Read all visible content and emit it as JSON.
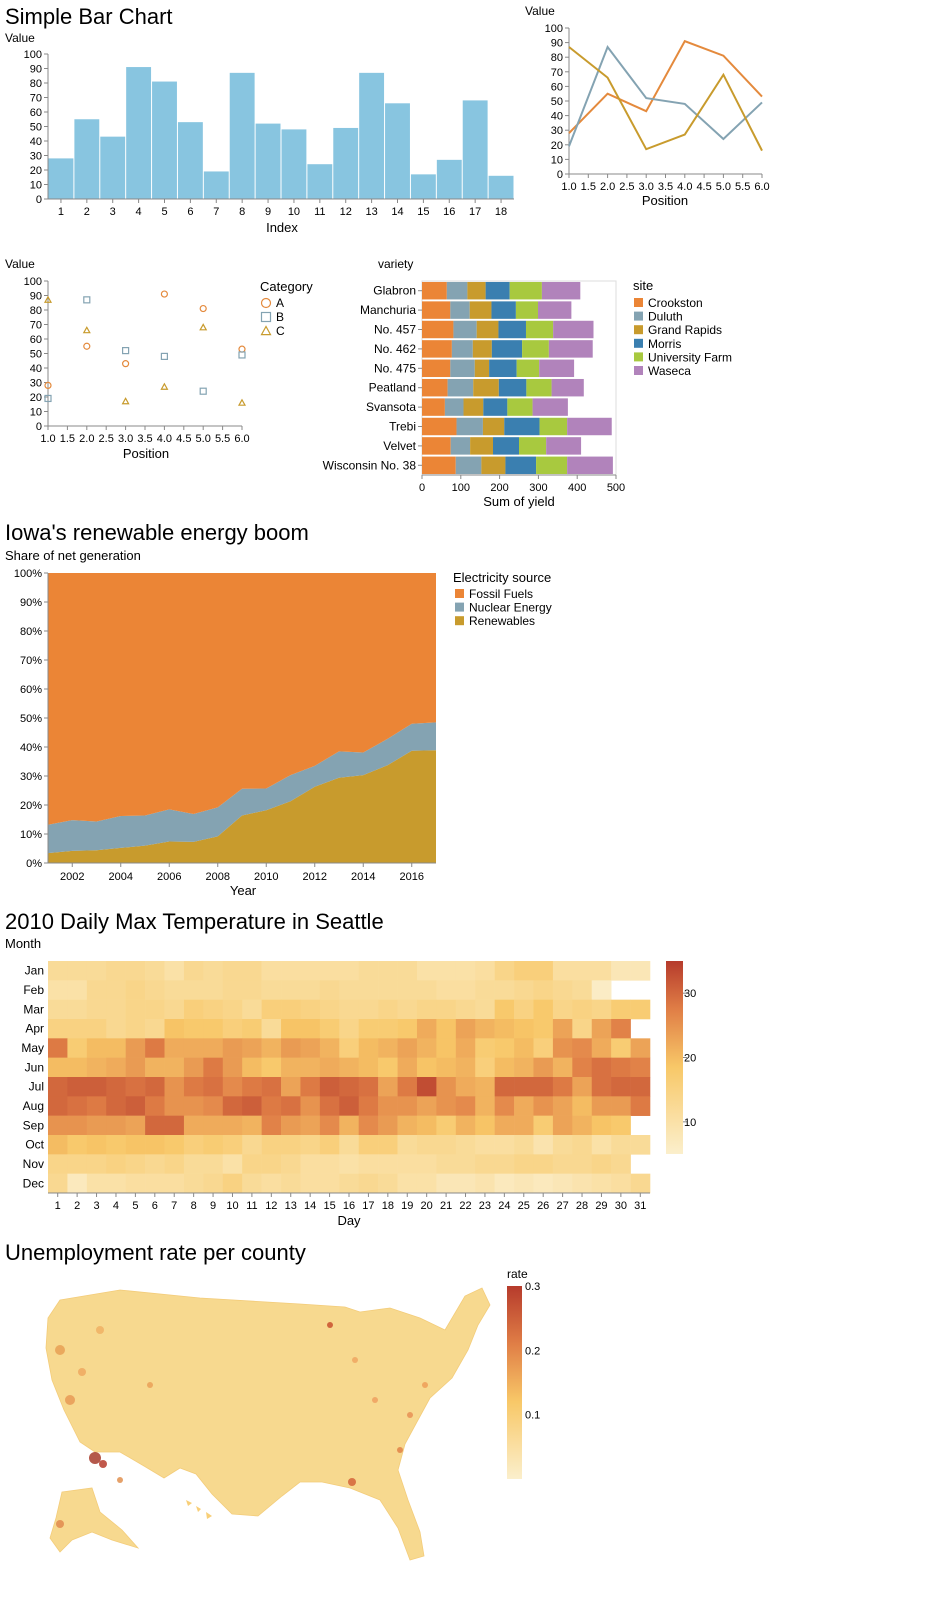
{
  "colors": {
    "bar": "#88c5e0",
    "tableau": [
      "#eb8536",
      "#84a3b2",
      "#c89b2d",
      "#3a7fb0",
      "#a8c93f",
      "#b183bb"
    ],
    "heat_low": "#fbefcc",
    "heat_mid": "#f8c868",
    "heat_high": "#b63b2c",
    "axis": "#888888"
  },
  "chart_data": [
    {
      "type": "bar",
      "title": "Simple Bar Chart",
      "ylabel": "Value",
      "xlabel": "Index",
      "categories": [
        "1",
        "2",
        "3",
        "4",
        "5",
        "6",
        "7",
        "8",
        "9",
        "10",
        "11",
        "12",
        "13",
        "14",
        "15",
        "16",
        "17",
        "18"
      ],
      "values": [
        28,
        55,
        43,
        91,
        81,
        53,
        19,
        87,
        52,
        48,
        24,
        49,
        87,
        66,
        17,
        27,
        68,
        16
      ],
      "ylim": [
        0,
        100
      ],
      "yticks": [
        "0",
        "10",
        "20",
        "30",
        "40",
        "50",
        "60",
        "70",
        "80",
        "90",
        "100"
      ]
    },
    {
      "type": "line",
      "title": "",
      "ylabel": "Value",
      "xlabel": "Position",
      "xlim": [
        1,
        6
      ],
      "ylim": [
        0,
        100
      ],
      "xticks": [
        "1.0",
        "1.5",
        "2.0",
        "2.5",
        "3.0",
        "3.5",
        "4.0",
        "4.5",
        "5.0",
        "5.5",
        "6.0"
      ],
      "yticks": [
        "0",
        "10",
        "20",
        "30",
        "40",
        "50",
        "60",
        "70",
        "80",
        "90",
        "100"
      ],
      "x": [
        1,
        2,
        3,
        4,
        5,
        6
      ],
      "series": [
        {
          "values": [
            28,
            55,
            43,
            91,
            81,
            53
          ],
          "color": "#e48a3d"
        },
        {
          "values": [
            19,
            87,
            52,
            48,
            24,
            49
          ],
          "color": "#84a3b2"
        },
        {
          "values": [
            87,
            66,
            17,
            27,
            68,
            16
          ],
          "color": "#c89b2d"
        }
      ]
    },
    {
      "type": "scatter",
      "title": "",
      "ylabel": "Value",
      "xlabel": "Position",
      "xlim": [
        1,
        6
      ],
      "ylim": [
        0,
        100
      ],
      "xticks": [
        "1.0",
        "1.5",
        "2.0",
        "2.5",
        "3.0",
        "3.5",
        "4.0",
        "4.5",
        "5.0",
        "5.5",
        "6.0"
      ],
      "yticks": [
        "0",
        "10",
        "20",
        "30",
        "40",
        "50",
        "60",
        "70",
        "80",
        "90",
        "100"
      ],
      "legend_title": "Category",
      "legend_position": "right",
      "x": [
        1,
        2,
        3,
        4,
        5,
        6
      ],
      "series": [
        {
          "name": "A",
          "shape": "circle",
          "color": "#e48a3d",
          "values": [
            28,
            55,
            43,
            91,
            81,
            53
          ]
        },
        {
          "name": "B",
          "shape": "square",
          "color": "#84a3b2",
          "values": [
            19,
            87,
            52,
            48,
            24,
            49
          ]
        },
        {
          "name": "C",
          "shape": "triangle",
          "color": "#c89b2d",
          "values": [
            87,
            66,
            17,
            27,
            68,
            16
          ]
        }
      ]
    },
    {
      "type": "bar",
      "orientation": "horizontal-stacked",
      "title": "",
      "ylabel": "variety",
      "xlabel": "Sum of yield",
      "xlim": [
        0,
        500
      ],
      "xticks": [
        "0",
        "100",
        "200",
        "300",
        "400",
        "500"
      ],
      "legend_title": "site",
      "legend_position": "right",
      "categories": [
        "Glabron",
        "Manchuria",
        "No. 457",
        "No. 462",
        "No. 475",
        "Peatland",
        "Svansota",
        "Trebi",
        "Velvet",
        "Wisconsin No. 38"
      ],
      "series": [
        {
          "name": "Crookston",
          "values": [
            64,
            73,
            81,
            77,
            73,
            66,
            59,
            89,
            74,
            87
          ]
        },
        {
          "name": "Duluth",
          "values": [
            53,
            50,
            60,
            54,
            63,
            66,
            48,
            68,
            50,
            66
          ]
        },
        {
          "name": "Grand Rapids",
          "values": [
            47,
            56,
            56,
            49,
            37,
            66,
            51,
            55,
            59,
            62
          ]
        },
        {
          "name": "Morris",
          "values": [
            62,
            63,
            71,
            78,
            71,
            71,
            62,
            91,
            67,
            79
          ]
        },
        {
          "name": "University Farm",
          "values": [
            83,
            57,
            70,
            69,
            58,
            65,
            65,
            71,
            70,
            80
          ]
        },
        {
          "name": "Waseca",
          "values": [
            99,
            86,
            104,
            113,
            90,
            83,
            91,
            115,
            90,
            118
          ]
        }
      ]
    },
    {
      "type": "area",
      "title": "Iowa's renewable energy boom",
      "ylabel": "Share of net generation",
      "xlabel": "Year",
      "xlim": [
        2001,
        2017
      ],
      "ylim": [
        0,
        100
      ],
      "xticks": [
        "2002",
        "2004",
        "2006",
        "2008",
        "2010",
        "2012",
        "2014",
        "2016"
      ],
      "yticks": [
        "0%",
        "10%",
        "20%",
        "30%",
        "40%",
        "50%",
        "60%",
        "70%",
        "80%",
        "90%",
        "100%"
      ],
      "legend_title": "Electricity source",
      "legend_position": "right",
      "x": [
        2001,
        2002,
        2003,
        2004,
        2005,
        2006,
        2007,
        2008,
        2009,
        2010,
        2011,
        2012,
        2013,
        2014,
        2015,
        2016,
        2017
      ],
      "series": [
        {
          "name": "Fossil Fuels",
          "values": [
            86.8,
            85.2,
            85.7,
            83.8,
            83.6,
            81.5,
            83.1,
            80.8,
            74.4,
            74.3,
            69.7,
            66.5,
            61.5,
            61.9,
            57.2,
            52.0,
            51.5
          ]
        },
        {
          "name": "Nuclear Energy",
          "values": [
            9.8,
            10.6,
            9.9,
            11.0,
            10.4,
            11.1,
            9.6,
            10.0,
            9.2,
            7.5,
            9.0,
            7.2,
            9.1,
            7.8,
            9.1,
            9.3,
            9.6
          ]
        },
        {
          "name": "Renewables",
          "values": [
            3.4,
            4.2,
            4.4,
            5.2,
            6.0,
            7.4,
            7.3,
            9.2,
            16.4,
            18.2,
            21.3,
            26.3,
            29.4,
            30.3,
            33.7,
            38.7,
            38.9
          ]
        }
      ]
    },
    {
      "type": "heatmap",
      "title": "2010 Daily Max Temperature in Seattle",
      "ylabel": "Month",
      "xlabel": "Day",
      "rows": [
        "Jan",
        "Feb",
        "Mar",
        "Apr",
        "May",
        "Jun",
        "Jul",
        "Aug",
        "Sep",
        "Oct",
        "Nov",
        "Dec"
      ],
      "columns": [
        "1",
        "2",
        "3",
        "4",
        "5",
        "6",
        "7",
        "8",
        "9",
        "10",
        "11",
        "12",
        "13",
        "14",
        "15",
        "16",
        "17",
        "18",
        "19",
        "20",
        "21",
        "22",
        "23",
        "24",
        "25",
        "26",
        "27",
        "28",
        "29",
        "30",
        "31"
      ],
      "color_range": [
        5,
        35
      ],
      "legend_ticks": [
        "10",
        "20",
        "30"
      ],
      "values": [
        [
          12,
          12,
          12,
          13,
          13,
          12,
          10,
          13,
          12,
          13,
          13,
          11,
          11,
          11,
          11,
          11,
          12,
          12,
          12,
          10,
          10,
          10,
          11,
          14,
          16,
          16,
          11,
          11,
          11,
          8,
          8
        ],
        [
          10,
          10,
          13,
          13,
          14,
          13,
          12,
          12,
          12,
          13,
          13,
          12,
          12,
          12,
          13,
          12,
          12,
          12,
          12,
          12,
          11,
          11,
          12,
          12,
          13,
          14,
          13,
          12,
          6,
          null,
          null
        ],
        [
          12,
          12,
          13,
          13,
          14,
          14,
          13,
          16,
          15,
          14,
          12,
          16,
          16,
          15,
          14,
          13,
          13,
          14,
          13,
          14,
          14,
          13,
          12,
          18,
          15,
          18,
          14,
          15,
          14,
          17,
          17
        ],
        [
          15,
          15,
          15,
          13,
          14,
          13,
          19,
          18,
          18,
          16,
          17,
          12,
          19,
          19,
          17,
          14,
          17,
          17,
          18,
          22,
          19,
          23,
          21,
          20,
          19,
          18,
          23,
          14,
          23,
          27,
          null
        ],
        [
          28,
          17,
          20,
          20,
          24,
          28,
          22,
          22,
          22,
          24,
          23,
          21,
          24,
          23,
          21,
          16,
          20,
          21,
          23,
          21,
          19,
          22,
          17,
          18,
          20,
          16,
          25,
          26,
          22,
          17,
          23
        ],
        [
          20,
          20,
          21,
          22,
          24,
          21,
          21,
          24,
          28,
          24,
          20,
          18,
          21,
          21,
          22,
          21,
          20,
          18,
          22,
          19,
          20,
          21,
          16,
          20,
          21,
          24,
          21,
          27,
          29,
          28,
          27
        ],
        [
          30,
          31,
          31,
          30,
          29,
          30,
          25,
          28,
          29,
          26,
          28,
          29,
          23,
          28,
          31,
          30,
          29,
          23,
          28,
          33,
          25,
          22,
          21,
          30,
          30,
          30,
          28,
          23,
          29,
          30,
          30
        ],
        [
          30,
          29,
          28,
          30,
          31,
          28,
          25,
          25,
          26,
          30,
          31,
          28,
          29,
          25,
          29,
          31,
          28,
          25,
          25,
          23,
          25,
          26,
          21,
          26,
          22,
          25,
          23,
          20,
          24,
          24,
          28
        ],
        [
          25,
          25,
          24,
          24,
          23,
          30,
          30,
          22,
          22,
          22,
          21,
          27,
          24,
          23,
          26,
          21,
          26,
          24,
          21,
          20,
          17,
          21,
          19,
          22,
          22,
          17,
          23,
          21,
          19,
          18,
          null
        ],
        [
          20,
          18,
          19,
          18,
          19,
          19,
          18,
          16,
          17,
          16,
          13,
          15,
          15,
          14,
          16,
          12,
          16,
          16,
          12,
          13,
          13,
          12,
          11,
          11,
          12,
          9,
          12,
          13,
          10,
          12,
          12
        ],
        [
          14,
          14,
          14,
          15,
          14,
          13,
          14,
          12,
          12,
          10,
          14,
          14,
          13,
          11,
          11,
          10,
          11,
          11,
          11,
          11,
          12,
          12,
          13,
          13,
          14,
          14,
          13,
          13,
          14,
          13,
          null
        ],
        [
          13,
          7,
          10,
          10,
          11,
          11,
          11,
          12,
          13,
          15,
          12,
          11,
          12,
          11,
          11,
          12,
          13,
          12,
          10,
          10,
          8,
          8,
          9,
          7,
          8,
          7,
          8,
          9,
          10,
          11,
          13
        ]
      ]
    },
    {
      "type": "map",
      "title": "Unemployment rate per county",
      "legend_title": "rate",
      "legend_ticks": [
        "0.3",
        "0.2",
        "0.1"
      ],
      "color_range": [
        0,
        0.3
      ]
    }
  ]
}
